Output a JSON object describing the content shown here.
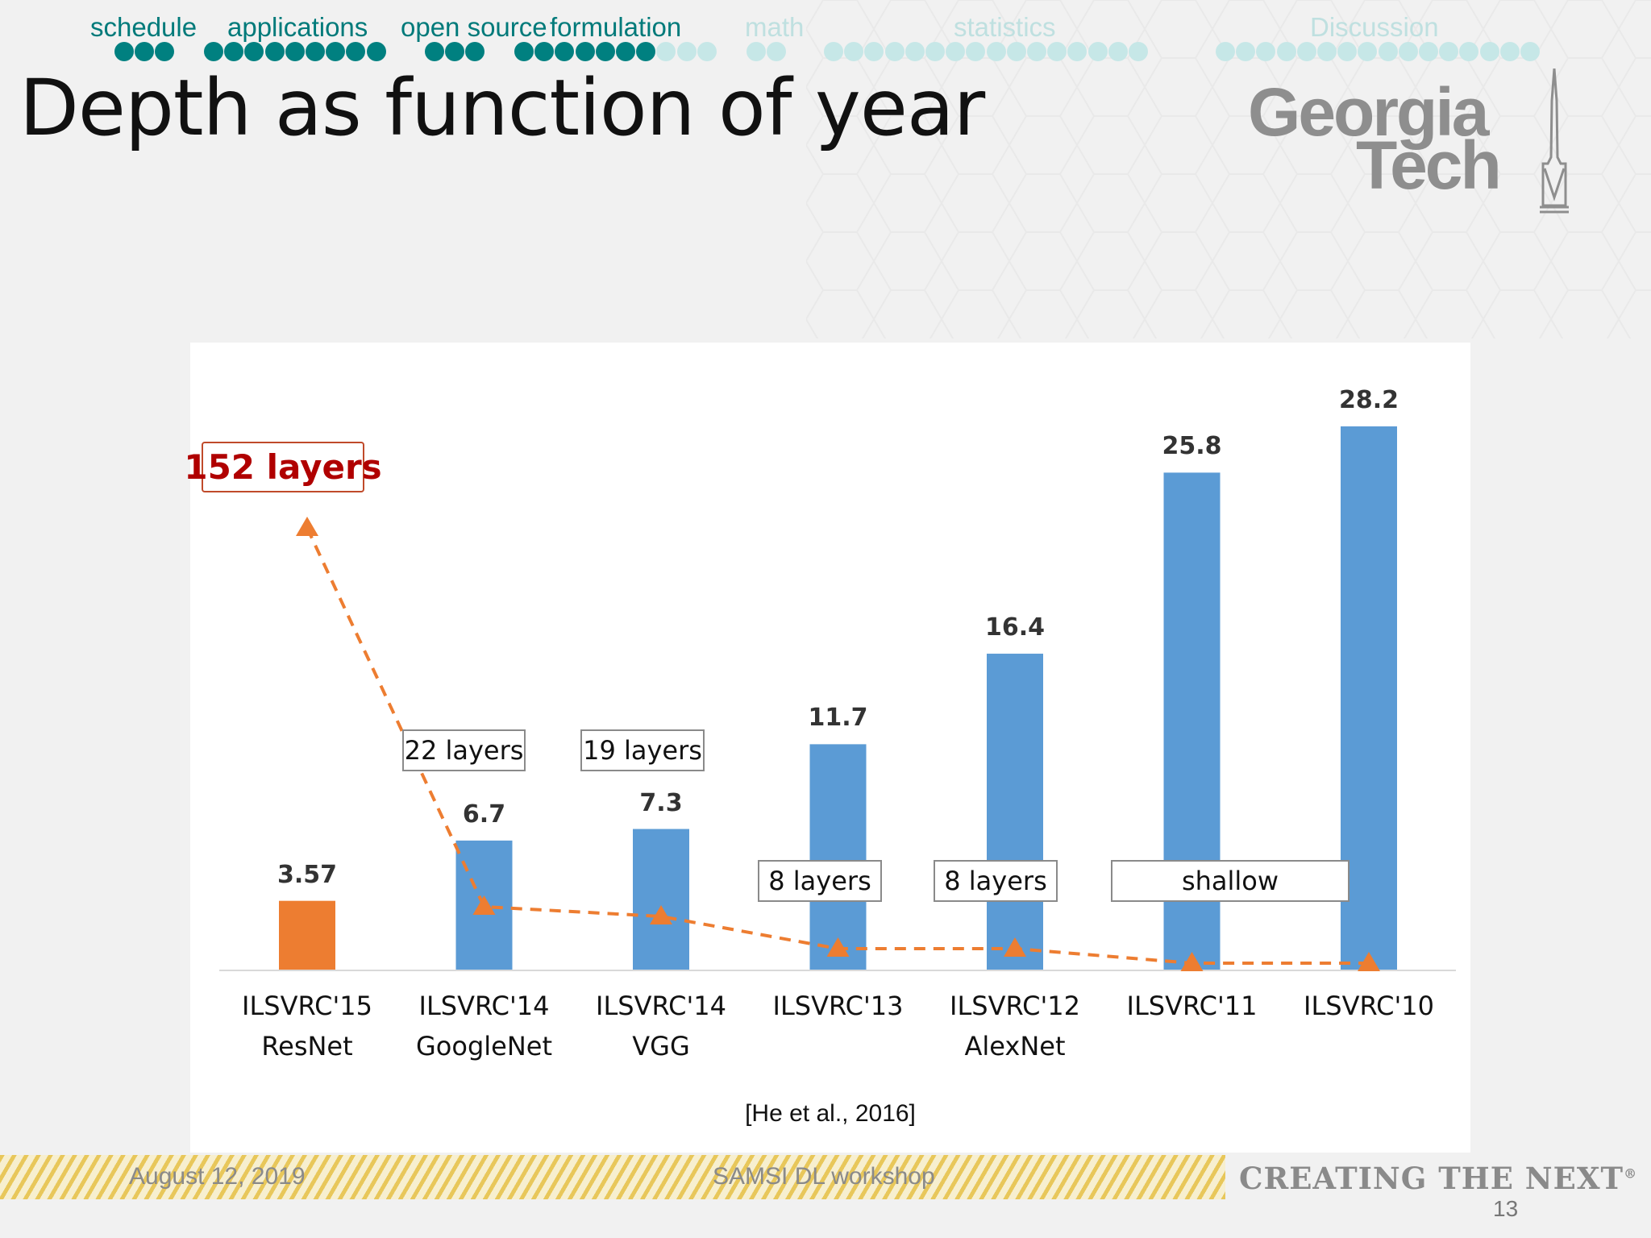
{
  "nav": {
    "sections": [
      {
        "label": "schedule",
        "active": true,
        "filled": 3,
        "empty": 0
      },
      {
        "label": "applications",
        "active": true,
        "filled": 9,
        "empty": 0
      },
      {
        "label": "open source",
        "active": true,
        "filled": 3,
        "empty": 0
      },
      {
        "label": "formulation",
        "active": true,
        "filled": 7,
        "empty": 3
      },
      {
        "label": "math",
        "active": false,
        "filled": 0,
        "empty": 2
      },
      {
        "label": "statistics",
        "active": false,
        "filled": 0,
        "empty": 16
      },
      {
        "label": "Discussion",
        "active": false,
        "filled": 0,
        "empty": 16
      }
    ]
  },
  "title": "Depth as function of year",
  "logo": {
    "line1": "Georgia",
    "line2": "Tech"
  },
  "chart_data": {
    "type": "bar",
    "title": "",
    "categories": [
      "ILSVRC'15 ResNet",
      "ILSVRC'14 GoogleNet",
      "ILSVRC'14 VGG",
      "ILSVRC'13",
      "ILSVRC'12 AlexNet",
      "ILSVRC'11",
      "ILSVRC'10"
    ],
    "category_lines": [
      [
        "ILSVRC'15",
        "ResNet"
      ],
      [
        "ILSVRC'14",
        "GoogleNet"
      ],
      [
        "ILSVRC'14",
        "VGG"
      ],
      [
        "ILSVRC'13",
        ""
      ],
      [
        "ILSVRC'12",
        "AlexNet"
      ],
      [
        "ILSVRC'11",
        ""
      ],
      [
        "ILSVRC'10",
        ""
      ]
    ],
    "values": [
      3.57,
      6.7,
      7.3,
      11.7,
      16.4,
      25.8,
      28.2
    ],
    "value_labels": [
      "3.57",
      "6.7",
      "7.3",
      "11.7",
      "16.4",
      "25.8",
      "28.2"
    ],
    "bar_colors": [
      "#ED7D31",
      "#5B9BD5",
      "#5B9BD5",
      "#5B9BD5",
      "#5B9BD5",
      "#5B9BD5",
      "#5B9BD5"
    ],
    "ylim": [
      0,
      30
    ],
    "depth_series": {
      "name": "layers",
      "color": "#ED7D31",
      "values": [
        152,
        22,
        19,
        8,
        8,
        2,
        2
      ]
    },
    "depth_labels": [
      "152 layers",
      "22 layers",
      "19 layers",
      "8 layers",
      "8 layers",
      "shallow"
    ],
    "xlabel": "",
    "ylabel": "",
    "citation": "[He et al., 2016]"
  },
  "footer": {
    "date": "August 12, 2019",
    "event": "SAMSI DL workshop",
    "tagline": "CREATING THE NEXT",
    "tagline_mark": "®",
    "page": "13"
  },
  "colors": {
    "accent": "#008080",
    "accent_light": "#c6e7e7",
    "bar": "#5B9BD5",
    "highlight": "#ED7D31"
  }
}
